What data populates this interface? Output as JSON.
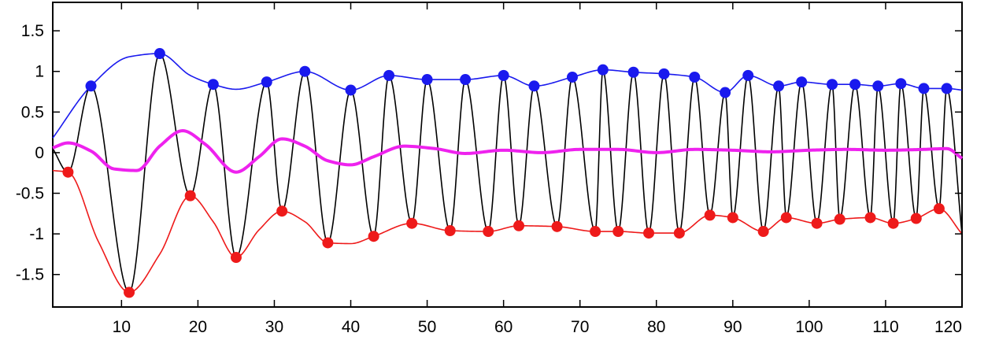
{
  "chart_data": {
    "type": "line",
    "title": "",
    "xlabel": "",
    "ylabel": "",
    "xlim": [
      1,
      120
    ],
    "ylim": [
      -1.9,
      1.85
    ],
    "grid": false,
    "legend": "none",
    "x_ticks": [
      10,
      20,
      30,
      40,
      50,
      60,
      70,
      80,
      90,
      100,
      110,
      120
    ],
    "x_tick_labels": [
      "10",
      "20",
      "30",
      "40",
      "50",
      "60",
      "70",
      "80",
      "90",
      "100",
      "110",
      "120"
    ],
    "y_ticks": [
      1.5,
      1,
      0.5,
      0,
      -0.5,
      -1,
      -1.5
    ],
    "y_tick_labels": [
      "1.5",
      "1",
      "0.5",
      "0",
      "-0.5",
      "-1",
      "-1.5"
    ],
    "colors": {
      "signal": "#000000",
      "upper": "#1a1aee",
      "lower": "#ee1a1a",
      "mean": "#ee22ee"
    },
    "upper_maxima": {
      "x": [
        6,
        15,
        22,
        29,
        34,
        40,
        45,
        50,
        55,
        60,
        64,
        69,
        73,
        77,
        81,
        85,
        89,
        92,
        96,
        99,
        103,
        106,
        109,
        112,
        115,
        118
      ],
      "y": [
        0.82,
        1.22,
        0.84,
        0.87,
        1.0,
        0.77,
        0.95,
        0.9,
        0.9,
        0.95,
        0.82,
        0.93,
        1.02,
        0.99,
        0.97,
        0.93,
        0.74,
        0.95,
        0.82,
        0.87,
        0.84,
        0.84,
        0.82,
        0.85,
        0.79,
        0.79
      ]
    },
    "lower_minima": {
      "x": [
        3,
        11,
        19,
        25,
        31,
        37,
        43,
        48,
        53,
        58,
        62,
        67,
        72,
        75,
        79,
        83,
        87,
        90,
        94,
        97,
        101,
        104,
        108,
        111,
        114,
        117
      ],
      "y": [
        -0.24,
        -1.72,
        -0.53,
        -1.29,
        -0.72,
        -1.11,
        -1.03,
        -0.87,
        -0.96,
        -0.97,
        -0.9,
        -0.91,
        -0.97,
        -0.97,
        -0.99,
        -0.99,
        -0.77,
        -0.8,
        -0.97,
        -0.8,
        -0.87,
        -0.82,
        -0.8,
        -0.87,
        -0.81,
        -0.69
      ]
    },
    "upper_envelope": {
      "x": [
        1,
        6,
        11,
        15,
        19,
        22,
        25,
        29,
        34,
        40,
        45,
        50,
        55,
        60,
        64,
        69,
        73,
        77,
        81,
        85,
        89,
        92,
        96,
        99,
        103,
        106,
        109,
        112,
        115,
        118,
        120
      ],
      "y": [
        0.18,
        0.82,
        1.18,
        1.22,
        0.95,
        0.84,
        0.78,
        0.87,
        1.0,
        0.77,
        0.95,
        0.9,
        0.9,
        0.95,
        0.82,
        0.93,
        1.02,
        0.99,
        0.97,
        0.93,
        0.74,
        0.95,
        0.82,
        0.87,
        0.84,
        0.84,
        0.82,
        0.85,
        0.79,
        0.79,
        0.77
      ]
    },
    "lower_envelope": {
      "x": [
        1,
        3,
        7,
        11,
        15,
        19,
        22,
        25,
        28,
        31,
        34,
        37,
        40,
        43,
        48,
        53,
        58,
        62,
        67,
        72,
        75,
        79,
        83,
        87,
        90,
        94,
        97,
        101,
        104,
        108,
        111,
        114,
        117,
        120
      ],
      "y": [
        -0.22,
        -0.24,
        -1.1,
        -1.72,
        -1.25,
        -0.53,
        -0.85,
        -1.29,
        -0.95,
        -0.72,
        -0.85,
        -1.11,
        -1.12,
        -1.03,
        -0.87,
        -0.96,
        -0.97,
        -0.9,
        -0.91,
        -0.97,
        -0.97,
        -0.99,
        -0.99,
        -0.77,
        -0.8,
        -0.97,
        -0.8,
        -0.87,
        -0.82,
        -0.8,
        -0.87,
        -0.81,
        -0.69,
        -1.0
      ]
    },
    "mean_curve": {
      "x": [
        1,
        3,
        6,
        9,
        12,
        15,
        18,
        21,
        25,
        28,
        31,
        34,
        37,
        40,
        43,
        47,
        51,
        55,
        60,
        65,
        70,
        75,
        80,
        85,
        90,
        95,
        100,
        105,
        110,
        115,
        118,
        120
      ],
      "y": [
        0.06,
        0.12,
        0.02,
        -0.2,
        -0.22,
        0.08,
        0.27,
        0.1,
        -0.24,
        -0.05,
        0.17,
        0.08,
        -0.1,
        -0.15,
        -0.05,
        0.08,
        0.05,
        -0.01,
        0.03,
        0.0,
        0.04,
        0.04,
        0.0,
        0.04,
        0.03,
        0.01,
        0.03,
        0.04,
        0.03,
        0.04,
        0.05,
        -0.07
      ]
    },
    "signal_extrema": {
      "x": [
        1,
        3,
        6,
        11,
        15,
        19,
        22,
        25,
        29,
        31,
        34,
        37,
        40,
        43,
        45,
        48,
        50,
        53,
        55,
        58,
        60,
        62,
        64,
        67,
        69,
        72,
        73,
        75,
        77,
        79,
        81,
        83,
        85,
        87,
        89,
        90,
        92,
        94,
        96,
        97,
        99,
        101,
        103,
        104,
        106,
        108,
        109,
        111,
        112,
        114,
        115,
        117,
        118,
        120
      ],
      "y": [
        0.05,
        -0.24,
        0.82,
        -1.72,
        1.22,
        -0.53,
        0.84,
        -1.29,
        0.87,
        -0.72,
        1.0,
        -1.11,
        0.77,
        -1.03,
        0.95,
        -0.87,
        0.9,
        -0.96,
        0.9,
        -0.97,
        0.95,
        -0.9,
        0.82,
        -0.91,
        0.93,
        -0.97,
        1.02,
        -0.97,
        0.99,
        -0.99,
        0.97,
        -0.99,
        0.93,
        -0.77,
        0.74,
        -0.8,
        0.95,
        -0.97,
        0.82,
        -0.8,
        0.87,
        -0.87,
        0.84,
        -0.82,
        0.84,
        -0.8,
        0.82,
        -0.87,
        0.85,
        -0.81,
        0.79,
        -0.69,
        0.79,
        -1.0
      ]
    }
  }
}
